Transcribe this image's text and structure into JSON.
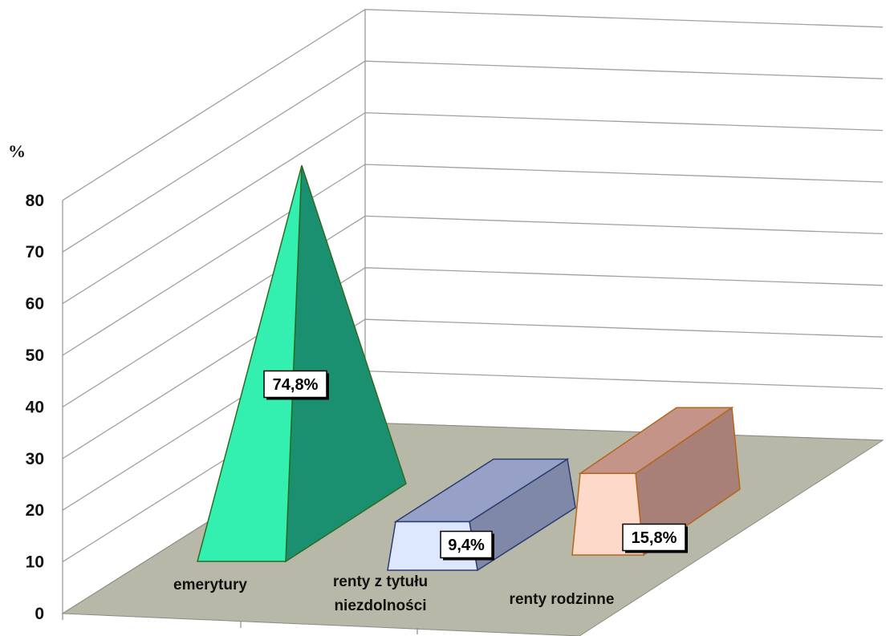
{
  "chart_data": {
    "type": "bar",
    "style": "3d",
    "title": "",
    "y_unit_label": "%",
    "categories": [
      "emerytury",
      "renty z tytułu niezdolności",
      "renty rodzinne"
    ],
    "category_label_lines": [
      [
        "emerytury"
      ],
      [
        "renty z tytułu",
        "niezdolności"
      ],
      [
        "renty rodzinne"
      ]
    ],
    "values": [
      74.8,
      9.4,
      15.8
    ],
    "value_labels": [
      "74,8%",
      "9,4%",
      "15,8%"
    ],
    "shapes": [
      "pyramid",
      "box",
      "box"
    ],
    "colors": [
      {
        "front": "#33f0b0",
        "side": "#1a9070",
        "top": "#5af5c5",
        "edge": "#2d6b22"
      },
      {
        "front": "#dde8ff",
        "side": "#8088a8",
        "top": "#97a1c8",
        "edge": "#2a3c70"
      },
      {
        "front": "#fcd9c8",
        "side": "#a88078",
        "top": "#c49488",
        "edge": "#b5651d"
      }
    ],
    "ylim": [
      0,
      80
    ],
    "yticks": [
      "0",
      "10",
      "20",
      "30",
      "40",
      "50",
      "60",
      "70",
      "80"
    ],
    "grid": true,
    "floor_color": "#b8b8a8",
    "legend": "none"
  }
}
